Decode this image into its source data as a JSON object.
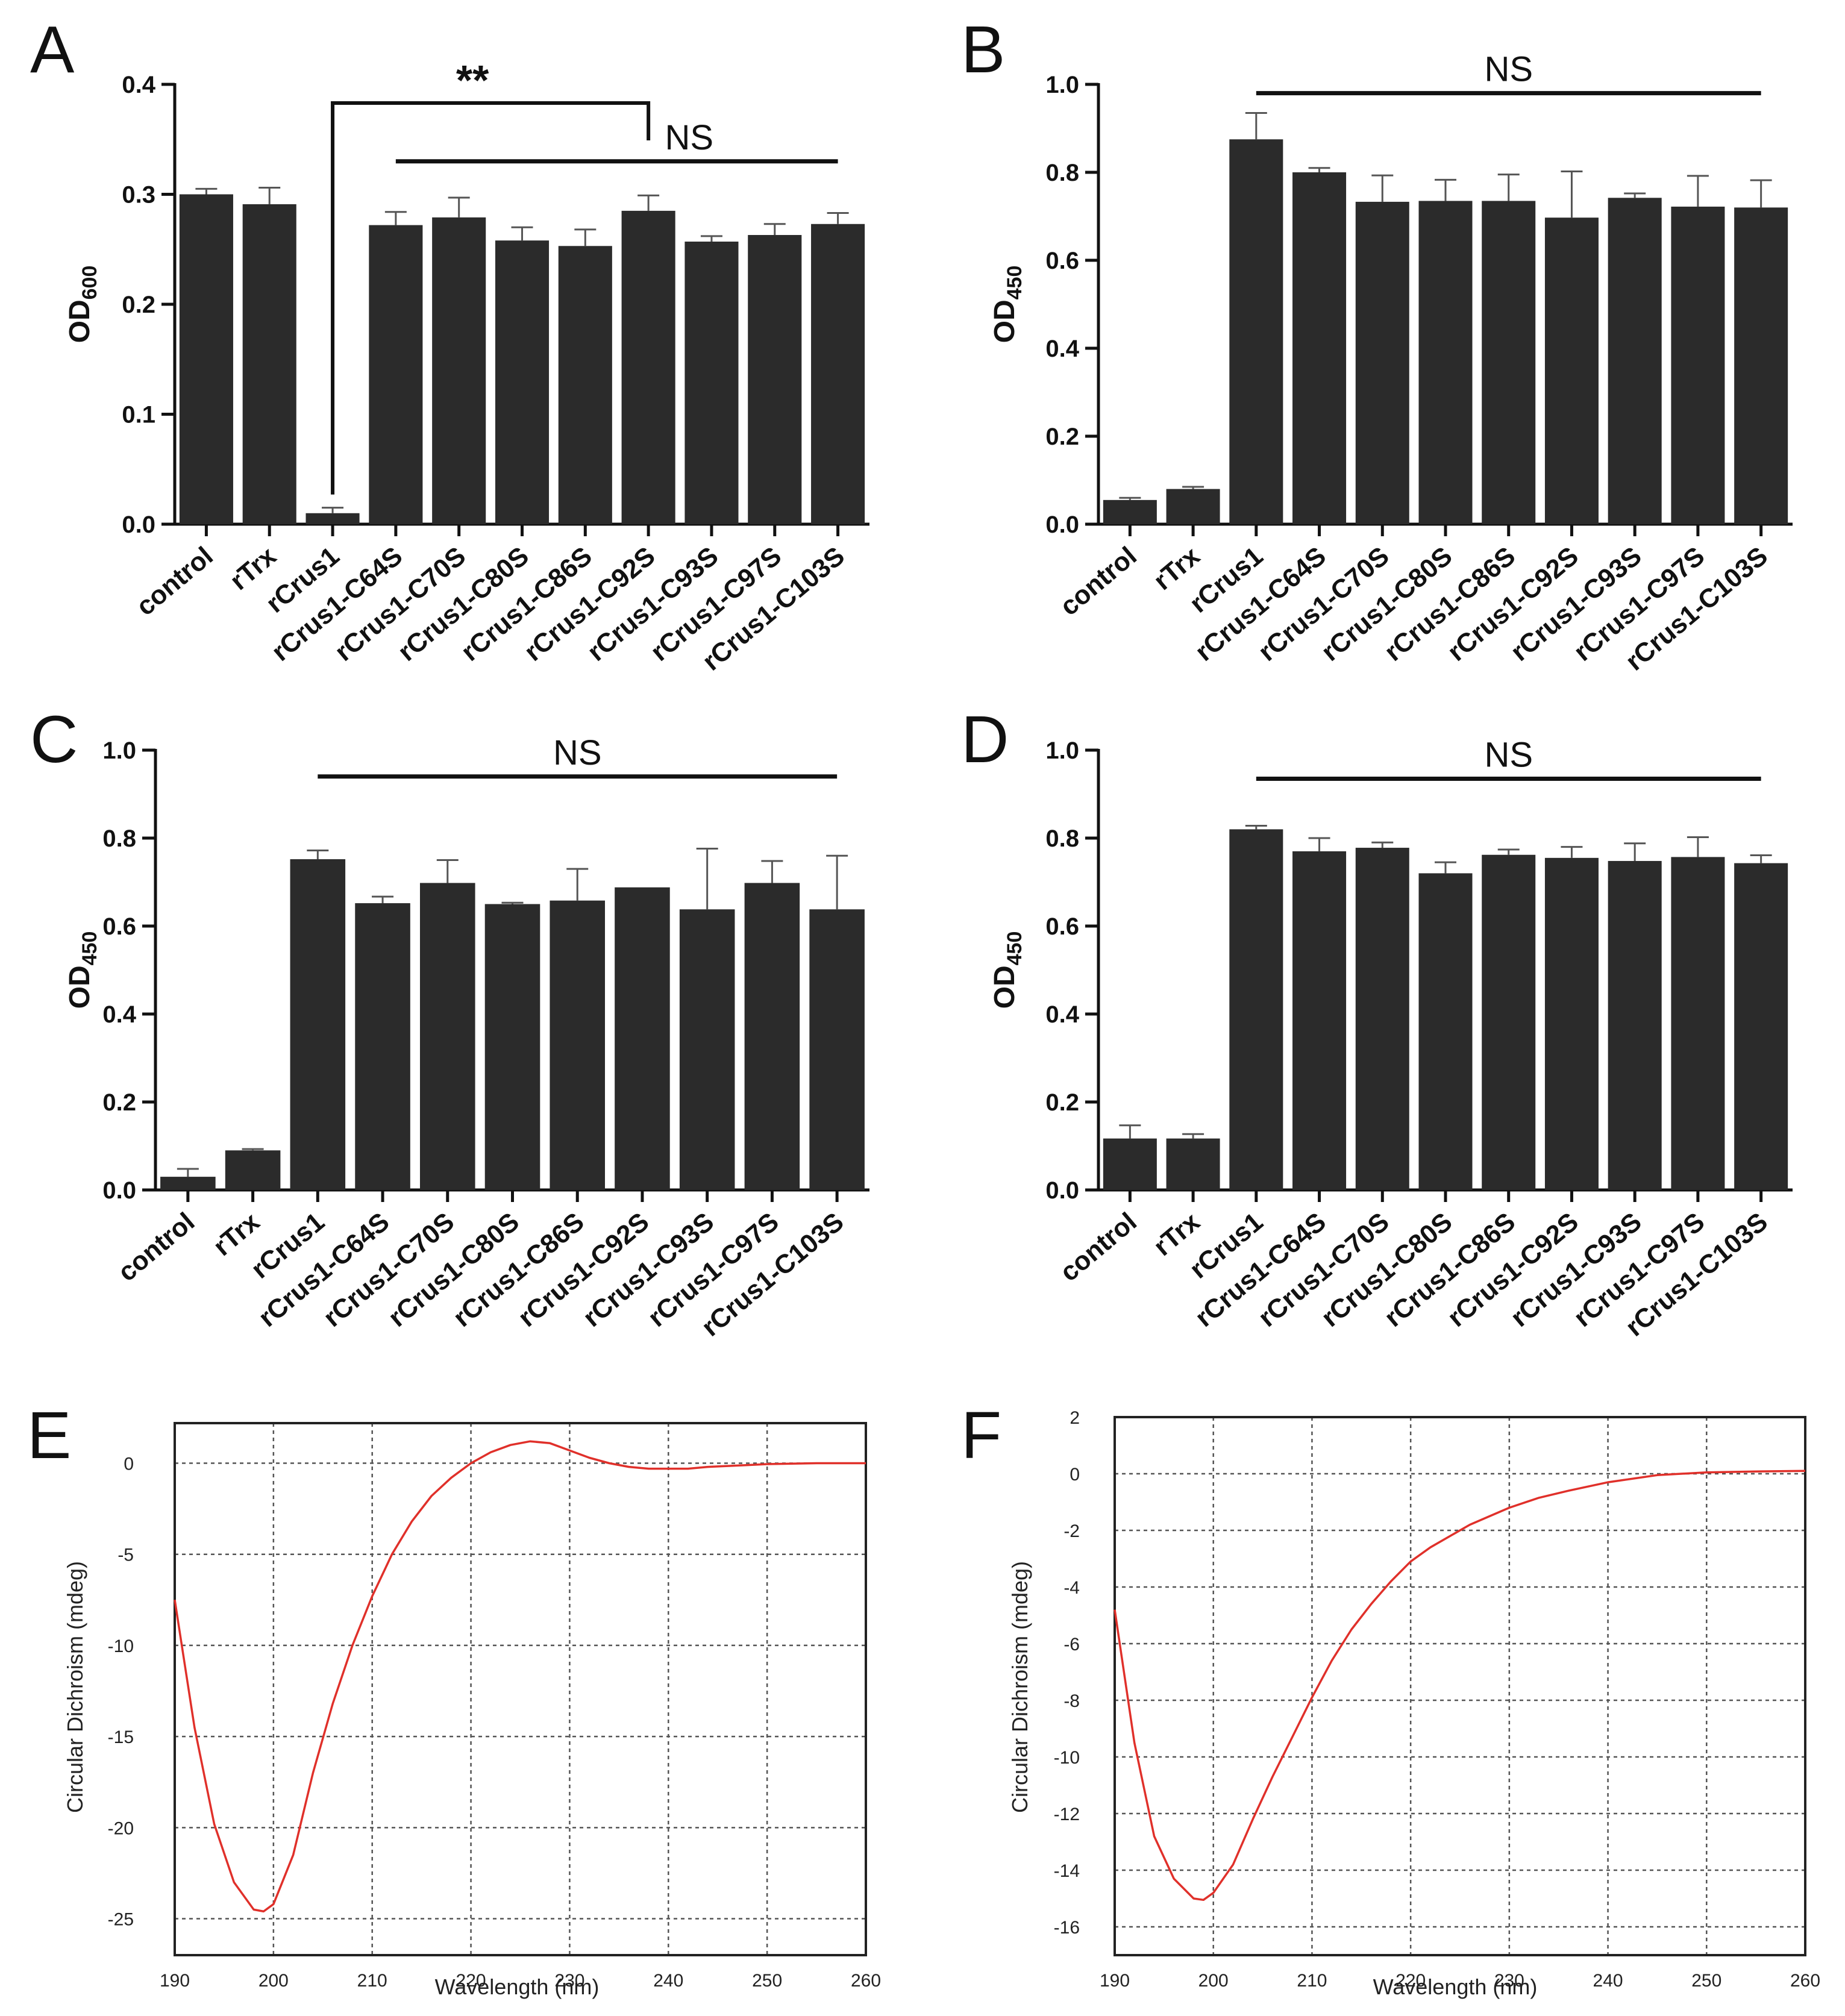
{
  "figure": {
    "panels": [
      {
        "letter": "A",
        "kind": "bar",
        "ylabel_main": "OD",
        "ylabel_sub": "600"
      },
      {
        "letter": "B",
        "kind": "bar",
        "ylabel_main": "OD",
        "ylabel_sub": "450"
      },
      {
        "letter": "C",
        "kind": "bar",
        "ylabel_main": "OD",
        "ylabel_sub": "450"
      },
      {
        "letter": "D",
        "kind": "bar",
        "ylabel_main": "OD",
        "ylabel_sub": "450"
      },
      {
        "letter": "E",
        "kind": "line"
      },
      {
        "letter": "F",
        "kind": "line"
      }
    ]
  },
  "chart_data": [
    {
      "panel": "A",
      "type": "bar",
      "categories": [
        "control",
        "rTrx",
        "rCrus1",
        "rCrus1-C64S",
        "rCrus1-C70S",
        "rCrus1-C80S",
        "rCrus1-C86S",
        "rCrus1-C92S",
        "rCrus1-C93S",
        "rCrus1-C97S",
        "rCrus1-C103S"
      ],
      "values": [
        0.3,
        0.291,
        0.01,
        0.272,
        0.279,
        0.258,
        0.253,
        0.285,
        0.257,
        0.263,
        0.273
      ],
      "errors": [
        0.005,
        0.015,
        0.005,
        0.012,
        0.018,
        0.012,
        0.015,
        0.014,
        0.005,
        0.01,
        0.01
      ],
      "ylabel": "OD600",
      "ylim": [
        0,
        0.4
      ],
      "yticks": [
        "0.0",
        "0.1",
        "0.2",
        "0.3",
        "0.4"
      ],
      "bar_color": "#2b2b2b",
      "annotations": [
        {
          "text": "**",
          "type": "bracket",
          "from": 2,
          "to": 7,
          "level": 0.383
        },
        {
          "text": "NS",
          "type": "line",
          "from": 3,
          "to": 10,
          "level": 0.33
        }
      ]
    },
    {
      "panel": "B",
      "type": "bar",
      "categories": [
        "control",
        "rTrx",
        "rCrus1",
        "rCrus1-C64S",
        "rCrus1-C70S",
        "rCrus1-C80S",
        "rCrus1-C86S",
        "rCrus1-C92S",
        "rCrus1-C93S",
        "rCrus1-C97S",
        "rCrus1-C103S"
      ],
      "values": [
        0.055,
        0.08,
        0.875,
        0.8,
        0.733,
        0.735,
        0.735,
        0.697,
        0.742,
        0.722,
        0.72
      ],
      "errors": [
        0.005,
        0.005,
        0.06,
        0.01,
        0.06,
        0.048,
        0.06,
        0.105,
        0.01,
        0.07,
        0.062
      ],
      "ylabel": "OD450",
      "ylim": [
        0,
        1.0
      ],
      "yticks": [
        "0.0",
        "0.2",
        "0.4",
        "0.6",
        "0.8",
        "1.0"
      ],
      "bar_color": "#2b2b2b",
      "annotations": [
        {
          "text": "NS",
          "type": "line",
          "from": 2,
          "to": 10,
          "level": 0.98
        }
      ]
    },
    {
      "panel": "C",
      "type": "bar",
      "categories": [
        "control",
        "rTrx",
        "rCrus1",
        "rCrus1-C64S",
        "rCrus1-C70S",
        "rCrus1-C80S",
        "rCrus1-C86S",
        "rCrus1-C92S",
        "rCrus1-C93S",
        "rCrus1-C97S",
        "rCrus1-C103S"
      ],
      "values": [
        0.03,
        0.09,
        0.752,
        0.652,
        0.698,
        0.65,
        0.658,
        0.688,
        0.638,
        0.698,
        0.638
      ],
      "errors": [
        0.018,
        0.003,
        0.02,
        0.015,
        0.052,
        0.003,
        0.072,
        0.0,
        0.138,
        0.05,
        0.122
      ],
      "ylabel": "OD450",
      "ylim": [
        0,
        1.0
      ],
      "yticks": [
        "0.0",
        "0.2",
        "0.4",
        "0.6",
        "0.8",
        "1.0"
      ],
      "bar_color": "#2b2b2b",
      "annotations": [
        {
          "text": "NS",
          "type": "line",
          "from": 2,
          "to": 10,
          "level": 0.94
        }
      ]
    },
    {
      "panel": "D",
      "type": "bar",
      "categories": [
        "control",
        "rTrx",
        "rCrus1",
        "rCrus1-C64S",
        "rCrus1-C70S",
        "rCrus1-C80S",
        "rCrus1-C86S",
        "rCrus1-C92S",
        "rCrus1-C93S",
        "rCrus1-C97S",
        "rCrus1-C103S"
      ],
      "values": [
        0.117,
        0.117,
        0.82,
        0.77,
        0.778,
        0.72,
        0.762,
        0.755,
        0.748,
        0.757,
        0.743
      ],
      "errors": [
        0.03,
        0.01,
        0.008,
        0.03,
        0.012,
        0.025,
        0.012,
        0.025,
        0.04,
        0.045,
        0.018
      ],
      "ylabel": "OD450",
      "ylim": [
        0,
        1.0
      ],
      "yticks": [
        "0.0",
        "0.2",
        "0.4",
        "0.6",
        "0.8",
        "1.0"
      ],
      "bar_color": "#2b2b2b",
      "annotations": [
        {
          "text": "NS",
          "type": "line",
          "from": 2,
          "to": 10,
          "level": 0.935
        }
      ]
    },
    {
      "panel": "E",
      "type": "line",
      "xlabel": "Wavelength (nm)",
      "ylabel": "Circular Dichroism (mdeg)",
      "xlim": [
        190,
        260
      ],
      "ylim": [
        -27,
        2.2
      ],
      "xticks": [
        "190",
        "200",
        "210",
        "220",
        "230",
        "240",
        "250",
        "260"
      ],
      "yticks": [
        "0",
        "-5",
        "-10",
        "-15",
        "-20",
        "-25"
      ],
      "grid": true,
      "line_color": "#e0302a",
      "x": [
        190,
        192,
        194,
        196,
        198,
        199,
        200,
        202,
        204,
        206,
        208,
        210,
        212,
        214,
        216,
        218,
        220,
        222,
        224,
        226,
        228,
        230,
        232,
        234,
        236,
        238,
        240,
        242,
        244,
        246,
        248,
        250,
        255,
        260
      ],
      "y": [
        -7.5,
        -14.5,
        -19.8,
        -23.0,
        -24.5,
        -24.6,
        -24.2,
        -21.5,
        -17.0,
        -13.2,
        -10.0,
        -7.3,
        -5.0,
        -3.2,
        -1.8,
        -0.8,
        0.0,
        0.6,
        1.0,
        1.2,
        1.1,
        0.7,
        0.3,
        0.0,
        -0.2,
        -0.3,
        -0.3,
        -0.3,
        -0.2,
        -0.15,
        -0.1,
        -0.05,
        0.0,
        0.0
      ]
    },
    {
      "panel": "F",
      "type": "line",
      "xlabel": "Wavelength (nm)",
      "ylabel": "Circular Dichroism (mdeg)",
      "xlim": [
        190,
        260
      ],
      "ylim": [
        -17,
        2
      ],
      "xticks": [
        "190",
        "200",
        "210",
        "220",
        "230",
        "240",
        "250",
        "260"
      ],
      "yticks": [
        "2",
        "0",
        "-2",
        "-4",
        "-6",
        "-8",
        "-10",
        "-12",
        "-14",
        "-16"
      ],
      "grid": true,
      "line_color": "#e0302a",
      "x": [
        190,
        192,
        194,
        196,
        198,
        199,
        200,
        202,
        204,
        206,
        208,
        210,
        212,
        214,
        216,
        218,
        220,
        222,
        224,
        226,
        228,
        230,
        233,
        236,
        240,
        245,
        250,
        255,
        260
      ],
      "y": [
        -4.8,
        -9.5,
        -12.8,
        -14.3,
        -15.0,
        -15.05,
        -14.8,
        -13.8,
        -12.2,
        -10.7,
        -9.3,
        -7.9,
        -6.6,
        -5.5,
        -4.6,
        -3.8,
        -3.1,
        -2.6,
        -2.2,
        -1.8,
        -1.5,
        -1.2,
        -0.85,
        -0.6,
        -0.3,
        -0.05,
        0.05,
        0.08,
        0.1
      ]
    }
  ]
}
